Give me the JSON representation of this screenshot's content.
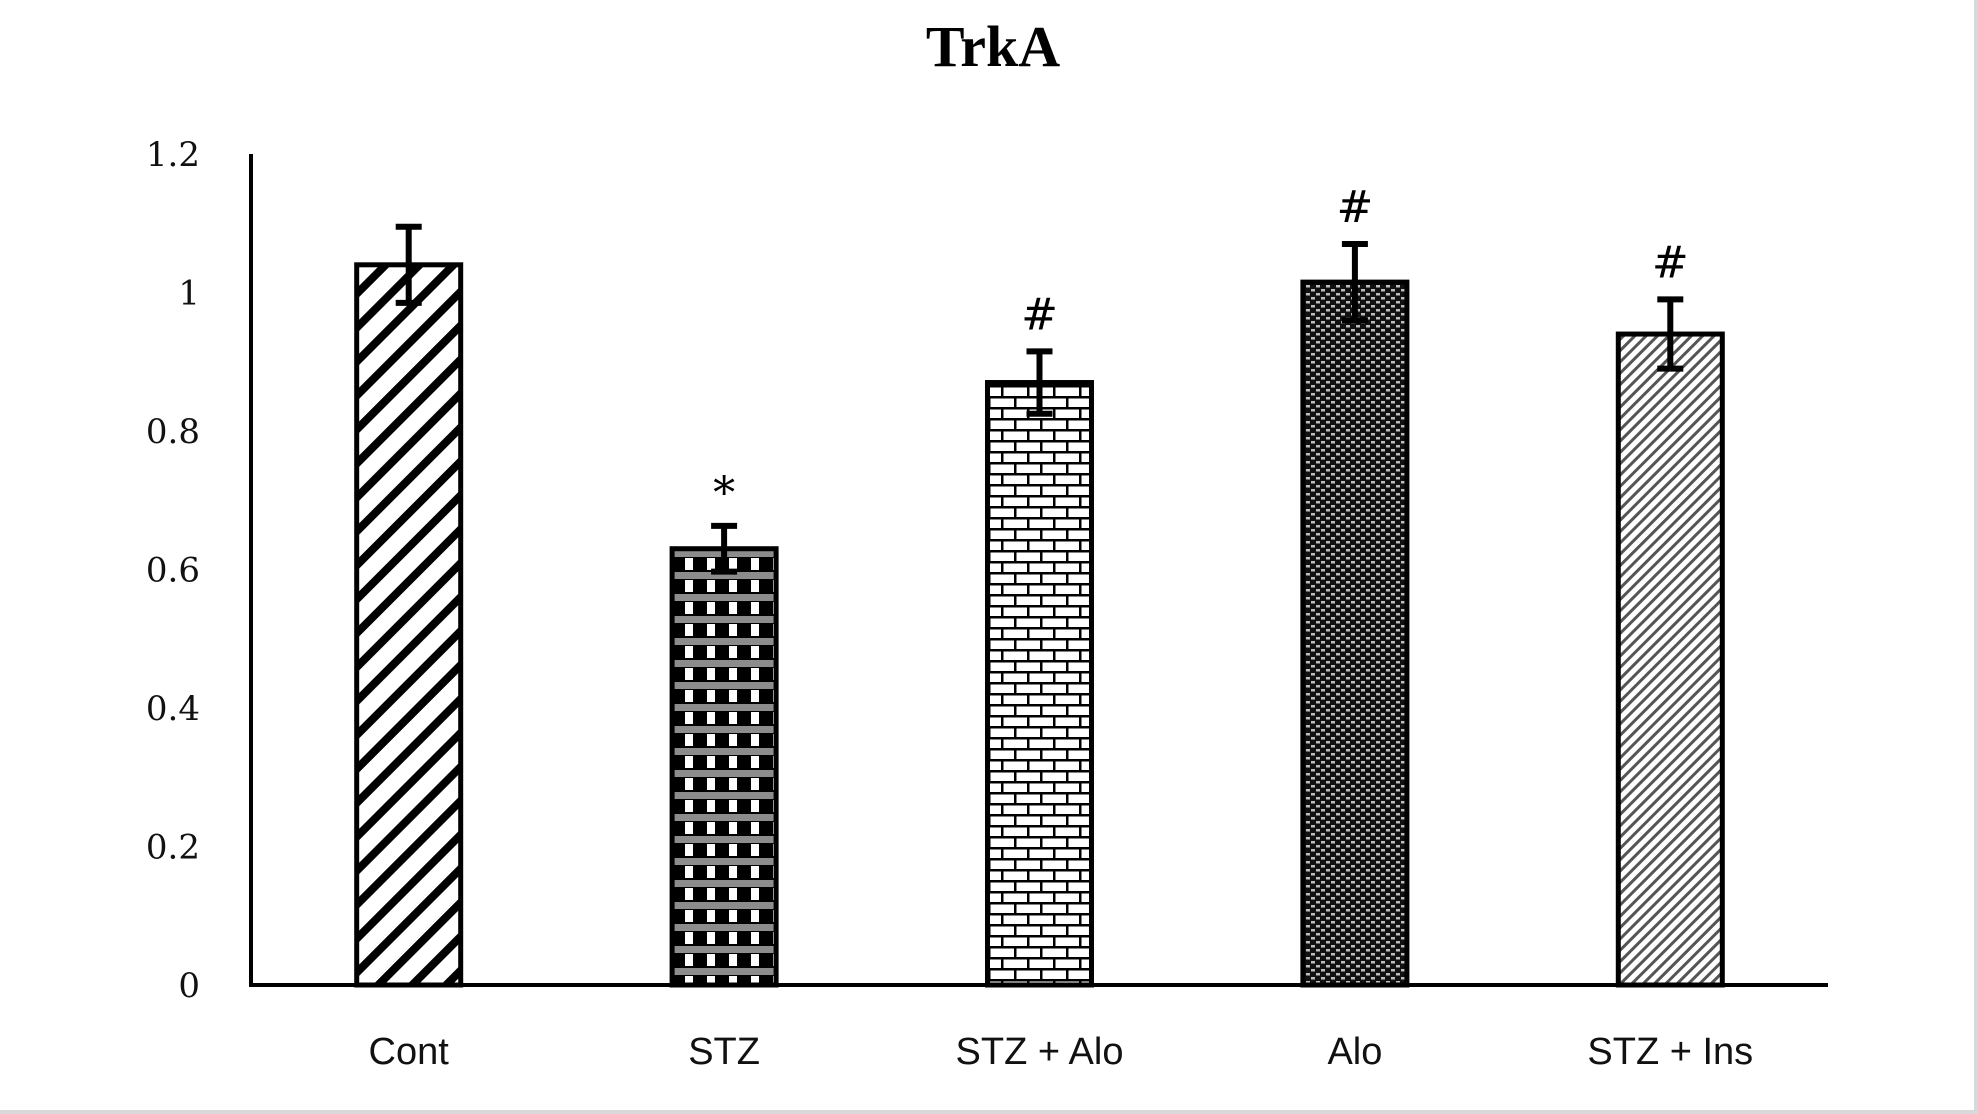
{
  "chart_data": {
    "type": "bar",
    "title": "TrkA",
    "xlabel": "",
    "ylabel": "",
    "ylim": [
      0,
      1.2
    ],
    "yticks": [
      "0",
      "0.2",
      "0.4",
      "0.6",
      "0.8",
      "1",
      "1.2"
    ],
    "ytick_values": [
      0,
      0.2,
      0.4,
      0.6,
      0.8,
      1,
      1.2
    ],
    "grid": false,
    "legend": "none",
    "categories": [
      "Cont",
      "STZ",
      "STZ + Alo",
      "Alo",
      "STZ + Ins"
    ],
    "values": [
      1.04,
      0.63,
      0.87,
      1.015,
      0.94
    ],
    "errors": [
      0.055,
      0.033,
      0.045,
      0.055,
      0.05
    ],
    "annotations": [
      "",
      "*",
      "#",
      "#",
      "#"
    ],
    "patterns": [
      "wide-diagonal-stripes",
      "checker-grid",
      "brick",
      "dense-dots",
      "fine-diagonal-stripes"
    ]
  }
}
